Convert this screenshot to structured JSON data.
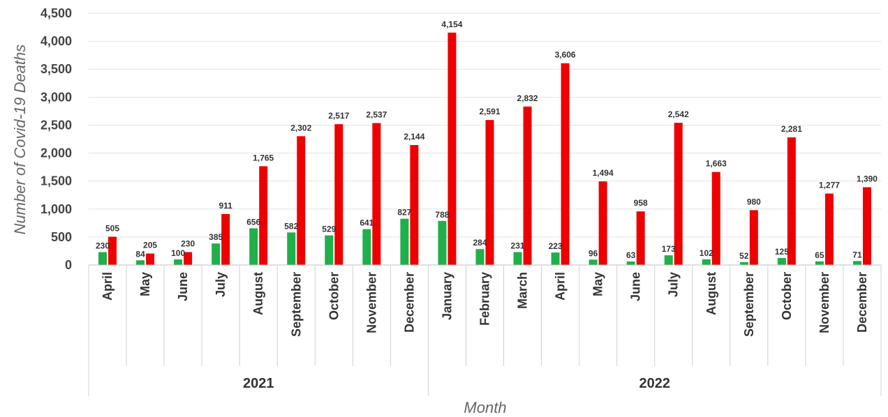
{
  "chart_data": {
    "type": "bar",
    "title": "",
    "ylabel": "Number of Covid-19 Deaths",
    "xlabel": "Month",
    "ylim": [
      0,
      4500
    ],
    "yticks": [
      "0",
      "500",
      "1,000",
      "1,500",
      "2,000",
      "2,500",
      "3,000",
      "3,500",
      "4,000",
      "4,500"
    ],
    "grid": true,
    "legend": "none",
    "categories": [
      "April",
      "May",
      "June",
      "July",
      "August",
      "September",
      "October",
      "November",
      "December",
      "January",
      "February",
      "March",
      "April",
      "May",
      "June",
      "July",
      "August",
      "September",
      "October",
      "November",
      "December"
    ],
    "groups": [
      {
        "label": "2021",
        "count": 9
      },
      {
        "label": "2022",
        "count": 12
      }
    ],
    "series": [
      {
        "color": "#1fb04b",
        "values": [
          230,
          84,
          100,
          385,
          656,
          582,
          529,
          641,
          827,
          788,
          284,
          231,
          223,
          96,
          63,
          173,
          102,
          52,
          125,
          65,
          71
        ],
        "labels": [
          "230",
          "84",
          "100",
          "385",
          "656",
          "582",
          "529",
          "641",
          "827",
          "788",
          "284",
          "231",
          "223",
          "96",
          "63",
          "173",
          "102",
          "52",
          "125",
          "65",
          "71"
        ]
      },
      {
        "color": "#ee0000",
        "values": [
          505,
          205,
          230,
          911,
          1765,
          2302,
          2517,
          2537,
          2144,
          4154,
          2591,
          2832,
          3606,
          1494,
          958,
          2542,
          1663,
          980,
          2281,
          1277,
          1390
        ],
        "labels": [
          "505",
          "205",
          "230",
          "911",
          "1,765",
          "2,302",
          "2,517",
          "2,537",
          "2,144",
          "4,154",
          "2,591",
          "2,832",
          "3,606",
          "1,494",
          "958",
          "2,542",
          "1,663",
          "980",
          "2,281",
          "1,277",
          "1,390"
        ]
      }
    ]
  }
}
